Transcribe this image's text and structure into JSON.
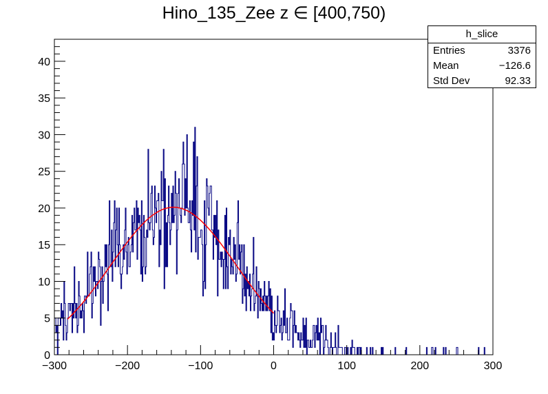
{
  "chart_data": {
    "type": "histogram",
    "title": "Hino_135_Zee z  ∈ [400,750)",
    "xlim": [
      -300,
      300
    ],
    "ylim": [
      0,
      43
    ],
    "x_ticks": [
      -300,
      -200,
      -100,
      0,
      100,
      200,
      300
    ],
    "y_ticks": [
      0,
      5,
      10,
      15,
      20,
      25,
      30,
      35,
      40
    ],
    "x_tick_labels": [
      "−300",
      "−200",
      "−100",
      "0",
      "100",
      "200",
      "300"
    ],
    "y_tick_labels": [
      "0",
      "5",
      "10",
      "15",
      "20",
      "25",
      "30",
      "35",
      "40"
    ],
    "bin_width": 1,
    "histogram_color": "#000080",
    "fit": {
      "type": "gaussian",
      "constant": 20.1,
      "mean": -137,
      "sigma": 86,
      "x_range": [
        -282,
        0
      ],
      "color": "#ff0000"
    },
    "stats": {
      "name": "h_slice",
      "entries_label": "Entries",
      "entries": "3376",
      "mean_label": "Mean",
      "mean": "−126.6",
      "std_label": "Std Dev",
      "std": "92.33"
    }
  }
}
